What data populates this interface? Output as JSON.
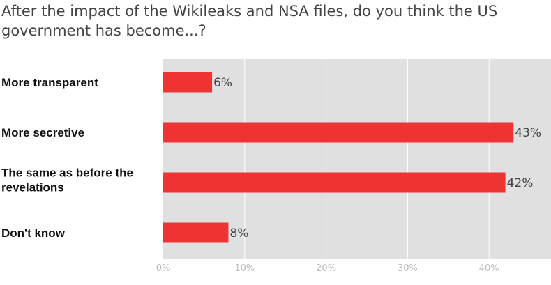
{
  "chart_data": {
    "type": "bar",
    "orientation": "horizontal",
    "title": "After the impact of the Wikileaks and NSA files, do you think the US government has become...?",
    "categories": [
      "More transparent",
      "More secretive",
      "The same as before the revelations",
      "Don't know"
    ],
    "category_lines": [
      [
        "More transparent"
      ],
      [
        "More secretive"
      ],
      [
        "The same as before the",
        "revelations"
      ],
      [
        "Don't know"
      ]
    ],
    "values": [
      6,
      43,
      42,
      8
    ],
    "value_labels": [
      "6%",
      "43%",
      "42%",
      "8%"
    ],
    "xlim": [
      0,
      47.6
    ],
    "ticks": [
      0,
      10,
      20,
      30,
      40
    ],
    "tick_labels": [
      "0%",
      "10%",
      "20%",
      "30%",
      "40%"
    ],
    "xlabel": "",
    "ylabel": "",
    "grid": true,
    "colors": {
      "bar": "#ee3333",
      "plot_bg": "#e0e0e0",
      "grid": "#ffffff"
    }
  }
}
